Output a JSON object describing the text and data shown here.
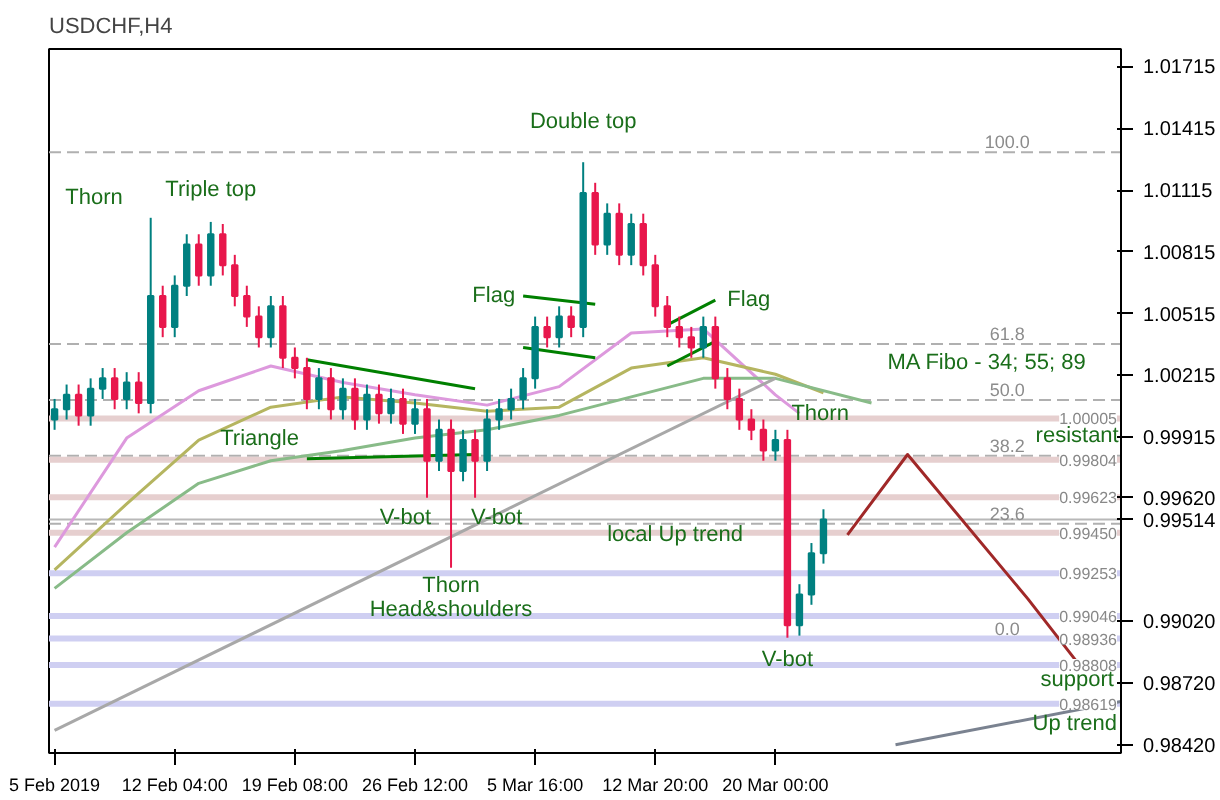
{
  "chart_data": {
    "type": "candlestick",
    "title": "USDCHF,H4",
    "x": [
      "2019-02-05T00:00",
      "2019-02-05T17:12",
      "2019-02-06T10:24",
      "2019-02-07T03:36",
      "2019-02-07T20:48",
      "2019-02-08T14:00",
      "2019-02-09T07:12",
      "2019-02-10T00:24",
      "2019-02-10T17:36",
      "2019-02-11T10:48",
      "2019-02-12T04:00",
      "2019-02-12T21:12",
      "2019-02-13T14:24",
      "2019-02-14T07:36",
      "2019-02-15T00:48",
      "2019-02-15T18:00",
      "2019-02-16T11:12",
      "2019-02-17T04:24",
      "2019-02-17T21:36",
      "2019-02-18T14:48",
      "2019-02-19T08:00",
      "2019-02-20T01:12",
      "2019-02-20T18:24",
      "2019-02-21T11:36",
      "2019-02-22T04:48",
      "2019-02-22T22:00",
      "2019-02-23T15:12",
      "2019-02-24T08:24",
      "2019-02-25T01:36",
      "2019-02-25T18:48",
      "2019-02-26T12:00",
      "2019-02-27T05:12",
      "2019-02-27T22:24",
      "2019-02-28T15:36",
      "2019-03-01T08:48",
      "2019-03-02T02:00",
      "2019-03-02T19:12",
      "2019-03-03T12:24",
      "2019-03-04T05:36",
      "2019-03-04T22:48",
      "2019-03-05T16:00",
      "2019-03-06T09:12",
      "2019-03-07T02:24",
      "2019-03-07T19:36",
      "2019-03-08T12:48",
      "2019-03-09T06:00",
      "2019-03-09T23:12",
      "2019-03-10T16:24",
      "2019-03-11T09:36",
      "2019-03-12T02:48",
      "2019-03-12T20:00",
      "2019-03-13T13:12",
      "2019-03-14T06:24",
      "2019-03-14T23:36",
      "2019-03-15T16:48",
      "2019-03-16T10:00",
      "2019-03-17T03:12",
      "2019-03-17T20:24",
      "2019-03-18T13:36",
      "2019-03-19T06:48",
      "2019-03-20T00:00",
      "2019-03-20T17:12",
      "2019-03-21T10:24",
      "2019-03-22T03:36",
      "2019-03-22T20:48"
    ],
    "ohlc": [
      [
        1.0,
        1.001,
        0.9995,
        1.0005
      ],
      [
        1.0005,
        1.0017,
        1.0,
        1.0012
      ],
      [
        1.0012,
        1.0017,
        0.9997,
        1.0002
      ],
      [
        1.0002,
        1.002,
        0.9997,
        1.0015
      ],
      [
        1.0015,
        1.0025,
        1.001,
        1.002
      ],
      [
        1.002,
        1.0025,
        1.0005,
        1.001
      ],
      [
        1.001,
        1.0023,
        1.0005,
        1.0018
      ],
      [
        1.0018,
        1.0023,
        1.0003,
        1.0008
      ],
      [
        1.0008,
        1.0098,
        1.0003,
        1.006
      ],
      [
        1.006,
        1.0065,
        1.004,
        1.0045
      ],
      [
        1.0045,
        1.007,
        1.004,
        1.0065
      ],
      [
        1.0065,
        1.009,
        1.006,
        1.0085
      ],
      [
        1.0085,
        1.009,
        1.0065,
        1.007
      ],
      [
        1.007,
        1.0096,
        1.0065,
        1.009
      ],
      [
        1.009,
        1.0095,
        1.007,
        1.0075
      ],
      [
        1.0075,
        1.008,
        1.0055,
        1.006
      ],
      [
        1.006,
        1.0065,
        1.0045,
        1.005
      ],
      [
        1.005,
        1.0055,
        1.0035,
        1.004
      ],
      [
        1.004,
        1.006,
        1.0035,
        1.0055
      ],
      [
        1.0055,
        1.006,
        1.0025,
        1.003
      ],
      [
        1.003,
        1.0035,
        1.002,
        1.0025
      ],
      [
        1.0025,
        1.003,
        1.0005,
        1.001
      ],
      [
        1.001,
        1.0025,
        1.0005,
        1.002
      ],
      [
        1.002,
        1.0025,
        1.0,
        1.0005
      ],
      [
        1.0005,
        1.002,
        1.0,
        1.0015
      ],
      [
        1.0015,
        1.002,
        0.9995,
        1.0
      ],
      [
        1.0,
        1.0017,
        0.9995,
        1.0012
      ],
      [
        1.0012,
        1.0017,
        0.9998,
        1.0003
      ],
      [
        1.0003,
        1.0015,
        0.9998,
        1.001
      ],
      [
        1.001,
        1.0015,
        0.9993,
        0.9998
      ],
      [
        0.9998,
        1.001,
        0.9993,
        1.0005
      ],
      [
        1.0005,
        1.001,
        0.9962,
        0.998
      ],
      [
        0.998,
        1.0,
        0.9975,
        0.9995
      ],
      [
        0.9995,
        1.0,
        0.9928,
        0.9975
      ],
      [
        0.9975,
        0.9995,
        0.997,
        0.999
      ],
      [
        0.999,
        0.9995,
        0.9962,
        0.998
      ],
      [
        0.998,
        1.0005,
        0.9975,
        1.0
      ],
      [
        1.0,
        1.001,
        0.9995,
        1.0005
      ],
      [
        1.0005,
        1.0015,
        1.0,
        1.001
      ],
      [
        1.001,
        1.0025,
        1.0005,
        1.002
      ],
      [
        1.002,
        1.005,
        1.0015,
        1.0045
      ],
      [
        1.0045,
        1.005,
        1.0035,
        1.004
      ],
      [
        1.004,
        1.0055,
        1.0035,
        1.005
      ],
      [
        1.005,
        1.0055,
        1.004,
        1.0045
      ],
      [
        1.0045,
        1.0125,
        1.004,
        1.011
      ],
      [
        1.011,
        1.0115,
        1.008,
        1.0085
      ],
      [
        1.0085,
        1.0105,
        1.008,
        1.01
      ],
      [
        1.01,
        1.0105,
        1.0075,
        1.008
      ],
      [
        1.008,
        1.01,
        1.0075,
        1.0095
      ],
      [
        1.0095,
        1.01,
        1.007,
        1.0075
      ],
      [
        1.0075,
        1.008,
        1.005,
        1.0055
      ],
      [
        1.0055,
        1.006,
        1.004,
        1.0045
      ],
      [
        1.0045,
        1.005,
        1.0035,
        1.004
      ],
      [
        1.004,
        1.0045,
        1.003,
        1.0035
      ],
      [
        1.0035,
        1.005,
        1.003,
        1.0045
      ],
      [
        1.0045,
        1.005,
        1.0015,
        1.002
      ],
      [
        1.002,
        1.0025,
        1.0005,
        1.001
      ],
      [
        1.001,
        1.0015,
        0.9995,
        1.0
      ],
      [
        1.0,
        1.0005,
        0.999,
        0.9995
      ],
      [
        0.9995,
        1.0,
        0.998,
        0.9985
      ],
      [
        0.9985,
        0.9995,
        0.998,
        0.999
      ],
      [
        0.999,
        0.9995,
        0.9894,
        0.99
      ],
      [
        0.99,
        0.992,
        0.9895,
        0.9915
      ],
      [
        0.9915,
        0.994,
        0.991,
        0.9935
      ],
      [
        0.9935,
        0.99564,
        0.993,
        0.99514
      ]
    ],
    "colors": [
      "#008080",
      "#008080",
      "#e8174c",
      "#008080",
      "#008080",
      "#e8174c",
      "#008080",
      "#e8174c",
      "#008080",
      "#e8174c",
      "#008080",
      "#008080",
      "#e8174c",
      "#008080",
      "#e8174c",
      "#e8174c",
      "#e8174c",
      "#e8174c",
      "#008080",
      "#e8174c",
      "#e8174c",
      "#e8174c",
      "#008080",
      "#e8174c",
      "#008080",
      "#e8174c",
      "#008080",
      "#e8174c",
      "#008080",
      "#e8174c",
      "#008080",
      "#e8174c",
      "#008080",
      "#e8174c",
      "#008080",
      "#e8174c",
      "#008080",
      "#008080",
      "#008080",
      "#008080",
      "#008080",
      "#e8174c",
      "#008080",
      "#e8174c",
      "#008080",
      "#e8174c",
      "#008080",
      "#e8174c",
      "#008080",
      "#e8174c",
      "#e8174c",
      "#e8174c",
      "#e8174c",
      "#e8174c",
      "#008080",
      "#e8174c",
      "#e8174c",
      "#e8174c",
      "#e8174c",
      "#e8174c",
      "#008080",
      "#e8174c",
      "#008080",
      "#008080",
      "#008080"
    ],
    "series": [
      {
        "type": "line",
        "color": "#dd99dd",
        "x": [
          "2019-02-05T00:00",
          "2019-02-09T07:12",
          "2019-02-13T14:24",
          "2019-02-17T21:36",
          "2019-02-22T04:48",
          "2019-02-26T12:00",
          "2019-03-02T19:12",
          "2019-03-07T02:24",
          "2019-03-11T09:36",
          "2019-03-15T16:48",
          "2019-03-20T00:00",
          "2019-03-21T10:24"
        ],
        "values": [
          0.9938,
          0.9991,
          1.0014,
          1.0026,
          1.0018,
          1.0012,
          1.0007,
          1.0016,
          1.0042,
          1.0044,
          1.0012,
          1.0003
        ]
      },
      {
        "type": "line",
        "color": "#b5b560",
        "x": [
          "2019-02-05T00:00",
          "2019-02-09T07:12",
          "2019-02-13T14:24",
          "2019-02-17T21:36",
          "2019-02-22T04:48",
          "2019-02-26T12:00",
          "2019-03-02T19:12",
          "2019-03-07T02:24",
          "2019-03-11T09:36",
          "2019-03-15T16:48",
          "2019-03-20T00:00",
          "2019-03-22T20:48"
        ],
        "values": [
          0.9927,
          0.9959,
          0.999,
          1.0006,
          1.0011,
          1.0008,
          1.0004,
          1.0006,
          1.0025,
          1.003,
          1.0022,
          1.0013
        ]
      },
      {
        "type": "line",
        "color": "#88bb88",
        "x": [
          "2019-02-05T00:00",
          "2019-02-09T07:12",
          "2019-02-13T14:24",
          "2019-02-17T21:36",
          "2019-02-22T04:48",
          "2019-02-26T12:00",
          "2019-03-02T19:12",
          "2019-03-07T02:24",
          "2019-03-11T09:36",
          "2019-03-15T16:48",
          "2019-03-20T00:00",
          "2019-03-25T17:36"
        ],
        "values": [
          0.9918,
          0.9945,
          0.9969,
          0.998,
          0.9985,
          0.9991,
          0.9995,
          1.0002,
          1.0011,
          1.002,
          1.002,
          1.0008
        ]
      },
      {
        "type": "line",
        "color": "#a8a8a8",
        "x": [
          "2019-02-05T00:00",
          "2019-03-20T00:00"
        ],
        "values": [
          0.9849,
          1.002
        ]
      },
      {
        "type": "line",
        "color": "#7a8290",
        "x": [
          "2019-03-27T04:00",
          "2019-04-09T14:48"
        ],
        "values": [
          0.9842,
          0.9863
        ]
      },
      {
        "type": "line",
        "color": "#a02828",
        "x": [
          "2019-03-24T07:12",
          "2019-03-27T21:12",
          "2019-04-04T01:12",
          "2019-04-06T22:00"
        ],
        "values": [
          0.9944,
          0.9983,
          0.9913,
          0.9883
        ]
      },
      {
        "type": "line",
        "color": "#008000",
        "x": [
          "2019-02-20T01:12",
          "2019-03-02T02:00"
        ],
        "values": [
          1.0029,
          1.0015
        ]
      },
      {
        "type": "line",
        "color": "#008000",
        "x": [
          "2019-02-20T01:12",
          "2019-03-02T02:00"
        ],
        "values": [
          0.9981,
          0.9983
        ]
      },
      {
        "type": "line",
        "color": "#008000",
        "x": [
          "2019-03-04T22:48",
          "2019-03-09T06:00"
        ],
        "values": [
          1.006,
          1.0056
        ]
      },
      {
        "type": "line",
        "color": "#008000",
        "x": [
          "2019-03-04T22:48",
          "2019-03-09T06:00"
        ],
        "values": [
          1.0035,
          1.003
        ]
      },
      {
        "type": "line",
        "color": "#008000",
        "x": [
          "2019-03-13T13:12",
          "2019-03-16T10:00"
        ],
        "values": [
          1.0046,
          1.0058
        ]
      },
      {
        "type": "line",
        "color": "#008000",
        "x": [
          "2019-03-13T13:12",
          "2019-03-16T10:00"
        ],
        "values": [
          1.0026,
          1.0038
        ]
      }
    ],
    "ref_lines": [
      {
        "axis": "y",
        "value": 1.01299,
        "color": "#b0b0b0",
        "line_style": "dashed"
      },
      {
        "axis": "y",
        "value": 1.00367,
        "color": "#b0b0b0",
        "line_style": "dashed"
      },
      {
        "axis": "y",
        "value": 1.00095,
        "color": "#b0b0b0",
        "line_style": "dashed"
      },
      {
        "axis": "y",
        "value": 0.99824,
        "color": "#b0b0b0",
        "line_style": "dashed"
      },
      {
        "axis": "y",
        "value": 0.99494,
        "color": "#b0b0b0",
        "line_style": "dashed"
      },
      {
        "axis": "y",
        "value": 1.00005,
        "label": "1.00005",
        "color": "#e6cfcf",
        "line_style": "solid"
      },
      {
        "axis": "y",
        "value": 0.99804,
        "label": "0.99804",
        "color": "#e6cfcf",
        "line_style": "solid"
      },
      {
        "axis": "y",
        "value": 0.99623,
        "label": "0.99623",
        "color": "#e6cfcf",
        "line_style": "solid"
      },
      {
        "axis": "y",
        "value": 0.9945,
        "label": "0.99450",
        "color": "#e6cfcf",
        "line_style": "solid"
      },
      {
        "axis": "y",
        "value": 0.99514,
        "color": "#b8b8b8",
        "line_style": "solid"
      },
      {
        "axis": "y",
        "value": 0.99253,
        "label": "0.99253",
        "color": "#cfcff2",
        "line_style": "solid"
      },
      {
        "axis": "y",
        "value": 0.99046,
        "label": "0.99046",
        "color": "#cfcff2",
        "line_style": "solid"
      },
      {
        "axis": "y",
        "value": 0.98936,
        "label": "0.98936",
        "color": "#cfcff2",
        "line_style": "solid"
      },
      {
        "axis": "y",
        "value": 0.98808,
        "label": "0.98808",
        "color": "#cfcff2",
        "line_style": "solid"
      },
      {
        "axis": "y",
        "value": 0.98619,
        "label": "0.98619",
        "color": "#cfcff2",
        "line_style": "solid"
      }
    ],
    "annotations": [
      {
        "text": "Thorn",
        "x": "2019-02-10T17:36",
        "y": 1.0098
      },
      {
        "text": "Triple top",
        "x": "2019-02-14T07:36",
        "y": 1.0096
      },
      {
        "text": "Triangle",
        "x": "2019-02-20T01:12",
        "y": 0.9981
      },
      {
        "text": "V-bot",
        "x": "2019-02-27T05:12",
        "y": 0.9962
      },
      {
        "text": "V-bot",
        "x": "2019-03-02T02:00",
        "y": 0.9962
      },
      {
        "text": "Thorn",
        "x": "2019-02-28T15:36",
        "y": 0.9928
      },
      {
        "text": "Head&shoulders",
        "x": "2019-02-28T15:36",
        "y": 0.9928
      },
      {
        "text": "Double top",
        "x": "2019-03-08T12:48",
        "y": 1.0125
      },
      {
        "text": "Flag",
        "x": "2019-03-04T22:48",
        "y": 1.006
      },
      {
        "text": "Flag",
        "x": "2019-03-16T10:00",
        "y": 1.0058
      },
      {
        "text": "Thorn",
        "x": "2019-03-20T00:00",
        "y": 0.9995
      },
      {
        "text": "V-bot",
        "x": "2019-03-20T17:12",
        "y": 0.9894
      },
      {
        "text": "local Up trend",
        "x": "2019-03-09T06:00",
        "y": 0.9977
      },
      {
        "text": "MA Fibo - 34; 55; 89",
        "x": "2019-03-25T17:36",
        "y": 1.0008
      },
      {
        "text": "resistant",
        "x": "2019-04-07T00:00",
        "y": 0.99804
      },
      {
        "text": "support",
        "x": "2019-04-07T00:00",
        "y": 0.98619
      },
      {
        "text": "Up trend",
        "x": "2019-04-09T14:48",
        "y": 0.9863
      },
      {
        "text": "100.0",
        "x": "2019-04-02T20:00",
        "y": 1.01299
      },
      {
        "text": "61.8",
        "x": "2019-04-02T20:00",
        "y": 1.00367
      },
      {
        "text": "50.0",
        "x": "2019-04-02T20:00",
        "y": 1.00095
      },
      {
        "text": "38.2",
        "x": "2019-04-02T20:00",
        "y": 0.99824
      },
      {
        "text": "23.6",
        "x": "2019-04-02T20:00",
        "y": 0.99494
      },
      {
        "text": "0.0",
        "x": "2019-04-02T20:00",
        "y": 0.98936
      }
    ],
    "xlim": [
      "2019-02-04T16:00",
      "2019-04-09T14:48"
    ],
    "xticks": [
      {
        "value": "2019-02-05T00:00",
        "label": "5 Feb 2019"
      },
      {
        "value": "2019-02-12T04:00",
        "label": "12 Feb 04:00"
      },
      {
        "value": "2019-02-19T08:00",
        "label": "19 Feb 08:00"
      },
      {
        "value": "2019-02-26T12:00",
        "label": "26 Feb 12:00"
      },
      {
        "value": "2019-03-05T16:00",
        "label": "5 Mar 16:00"
      },
      {
        "value": "2019-03-12T20:00",
        "label": "12 Mar 20:00"
      },
      {
        "value": "2019-03-20T00:00",
        "label": "20 Mar 00:00"
      }
    ],
    "ylim": [
      0.9838,
      1.018
    ],
    "yticks": [
      {
        "value": 0.9842,
        "label": "0.98420"
      },
      {
        "value": 0.9872,
        "label": "0.98720"
      },
      {
        "value": 0.9902,
        "label": "0.99020"
      },
      {
        "value": 0.99514,
        "label": "0.99514"
      },
      {
        "value": 0.9962,
        "label": "0.99620"
      },
      {
        "value": 0.99915,
        "label": "0.99915"
      },
      {
        "value": 1.00215,
        "label": "1.00215"
      },
      {
        "value": 1.00515,
        "label": "1.00515"
      },
      {
        "value": 1.00815,
        "label": "1.00815"
      },
      {
        "value": 1.01115,
        "label": "1.01115"
      },
      {
        "value": 1.01415,
        "label": "1.01415"
      },
      {
        "value": 1.01715,
        "label": "1.01715"
      }
    ],
    "grid": false
  }
}
